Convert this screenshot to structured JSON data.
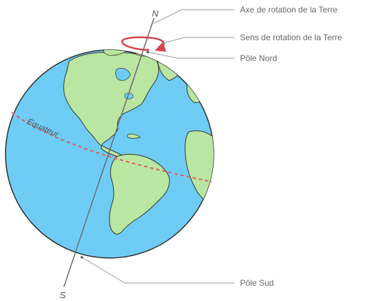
{
  "labels": {
    "axis": "Axe de rotation de la Terre",
    "rotation": "Sens de rotation de la Terre",
    "north_pole": "Pôle Nord",
    "south_pole": "Pôle Sud",
    "north_letter": "N",
    "south_letter": "S",
    "equator": "Équateur"
  },
  "colors": {
    "ocean": "#6fcdf5",
    "land": "#b9e6a0",
    "outline": "#2b2b2b",
    "axis": "#6b6b6b",
    "equator": "#d95f5f",
    "rotation_arrow": "#d9434e",
    "leader": "#9a9a9a"
  }
}
